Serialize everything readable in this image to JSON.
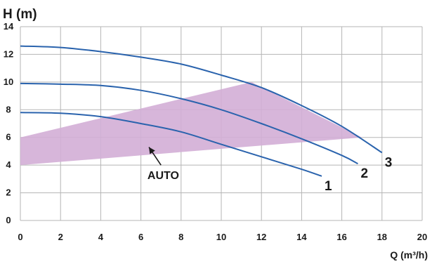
{
  "chart_data": {
    "type": "line",
    "title": "",
    "ylabel": "H (m)",
    "xlabel": "Q (m³/h)",
    "xlim": [
      0,
      20
    ],
    "ylim": [
      0,
      14
    ],
    "x_ticks": [
      0,
      2,
      4,
      6,
      8,
      10,
      12,
      14,
      16,
      18,
      20
    ],
    "y_ticks": [
      0,
      2,
      4,
      6,
      8,
      10,
      12,
      14
    ],
    "grid": true,
    "colors": {
      "curve": "#2a63ad",
      "auto_region": "#d3aed6",
      "grid": "#b5b5b5"
    },
    "series": [
      {
        "name": "1",
        "x": [
          0,
          2,
          4,
          6,
          8,
          10,
          12,
          14,
          15
        ],
        "y": [
          7.8,
          7.75,
          7.5,
          7.0,
          6.4,
          5.5,
          4.6,
          3.7,
          3.2
        ]
      },
      {
        "name": "2",
        "x": [
          0,
          2,
          4,
          6,
          8,
          10,
          12,
          14,
          16,
          16.8
        ],
        "y": [
          9.9,
          9.85,
          9.75,
          9.4,
          8.8,
          8.0,
          7.0,
          5.9,
          4.7,
          4.1
        ]
      },
      {
        "name": "3",
        "x": [
          0,
          2,
          4,
          6,
          8,
          10,
          12,
          14,
          16,
          18
        ],
        "y": [
          12.6,
          12.5,
          12.2,
          11.8,
          11.3,
          10.5,
          9.6,
          8.3,
          6.8,
          4.9
        ]
      }
    ],
    "auto_region": {
      "label": "AUTO",
      "polygon": [
        [
          0,
          6.0
        ],
        [
          11.5,
          10.0
        ],
        [
          17,
          6.0
        ],
        [
          0,
          4.0
        ]
      ]
    }
  }
}
